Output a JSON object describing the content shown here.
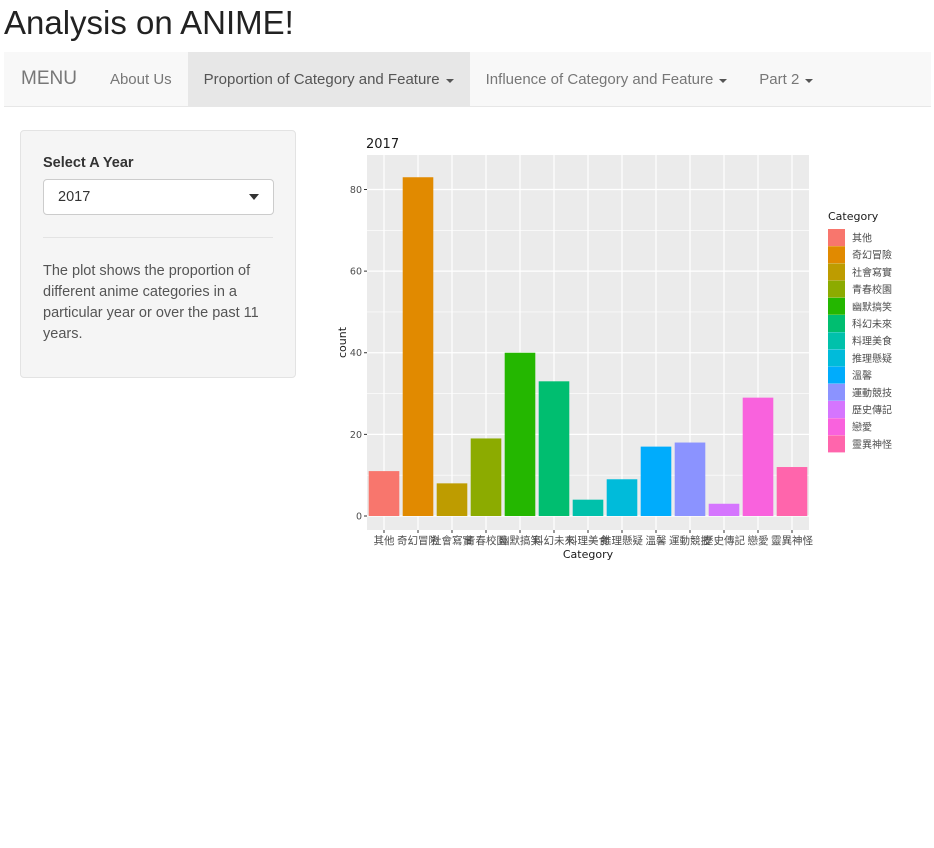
{
  "app_title": "Analysis on ANIME!",
  "nav": {
    "brand": "MENU",
    "items": [
      {
        "label": "About Us",
        "dropdown": false,
        "active": false
      },
      {
        "label": "Proportion of Category and Feature",
        "dropdown": true,
        "active": true
      },
      {
        "label": "Influence of Category and Feature",
        "dropdown": true,
        "active": false
      },
      {
        "label": "Part 2",
        "dropdown": true,
        "active": false
      }
    ]
  },
  "sidebar": {
    "select_label": "Select A Year",
    "selected_year": "2017",
    "description": "The plot shows the proportion of different anime categories in a particular year or over the past 11 years."
  },
  "colors": {
    "panel_bg": "#ebebeb",
    "grid": "#ffffff"
  },
  "chart_data": {
    "type": "bar",
    "title": "2017",
    "xlabel": "Category",
    "ylabel": "count",
    "ylim": [
      0,
      86
    ],
    "yticks": [
      0,
      20,
      40,
      60,
      80
    ],
    "grid": true,
    "legend_title": "Category",
    "legend_position": "right",
    "categories": [
      "其他",
      "奇幻冒險",
      "社會寫實",
      "青春校園",
      "幽默搞笑",
      "科幻未來",
      "料理美食",
      "推理懸疑",
      "溫馨",
      "運動競技",
      "歷史傳記",
      "戀愛",
      "靈異神怪"
    ],
    "values": [
      11,
      83,
      8,
      19,
      40,
      33,
      4,
      9,
      17,
      18,
      3,
      29,
      12
    ],
    "colors": [
      "#F8766D",
      "#E18A00",
      "#BE9C00",
      "#8CAB00",
      "#24B700",
      "#00BE70",
      "#00C1AB",
      "#00BBDA",
      "#00ACFC",
      "#8B93FF",
      "#D575FE",
      "#F962DD",
      "#FF65AC"
    ]
  }
}
